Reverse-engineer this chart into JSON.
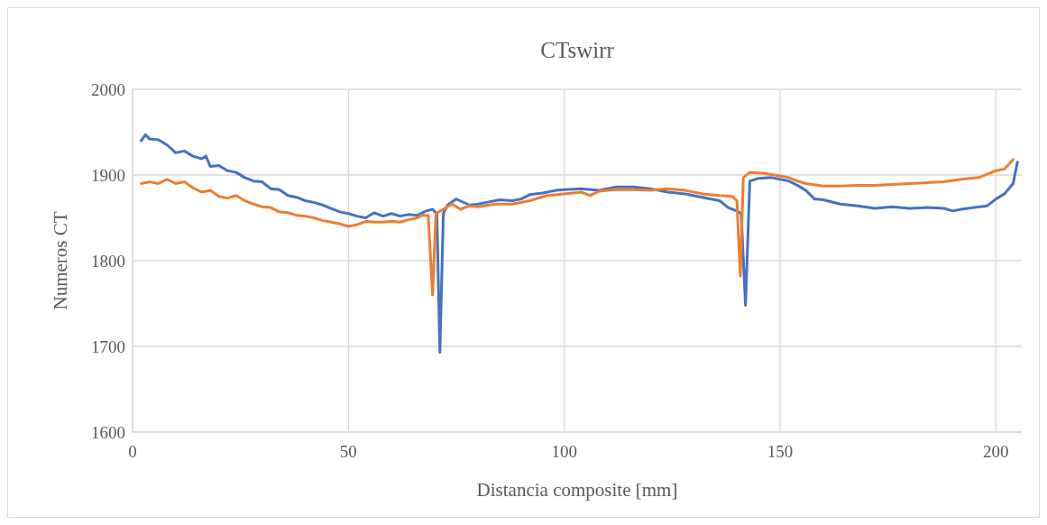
{
  "chart_data": {
    "type": "line",
    "title": "CTswirr",
    "xlabel": "Distancia composite [mm]",
    "ylabel": "Numeros CT",
    "xlim": [
      0,
      206
    ],
    "xticks": [
      0,
      50,
      100,
      150,
      200
    ],
    "ylim": [
      1600,
      2000
    ],
    "yticks": [
      1600,
      1700,
      1800,
      1900,
      2000
    ],
    "grid": true,
    "series": [
      {
        "color": "#4472c4",
        "x": [
          2,
          3,
          4,
          6,
          8,
          10,
          12,
          14,
          16,
          17,
          18,
          20,
          22,
          24,
          26,
          28,
          30,
          32,
          34,
          36,
          38,
          40,
          42,
          44,
          46,
          48,
          50,
          52,
          54,
          56,
          58,
          60,
          62,
          64,
          66,
          68,
          69.5,
          70.5,
          71.2,
          72,
          73,
          75,
          78,
          80,
          82,
          85,
          88,
          90,
          92,
          95,
          98,
          100,
          104,
          108,
          112,
          116,
          120,
          124,
          128,
          132,
          136,
          138,
          140,
          141,
          142,
          143,
          145,
          148,
          150,
          152,
          154,
          156,
          158,
          160,
          164,
          168,
          172,
          176,
          180,
          184,
          188,
          190,
          192,
          195,
          198,
          200,
          202,
          204,
          205
        ],
        "values": [
          1940,
          1947,
          1942,
          1941,
          1935,
          1926,
          1928,
          1922,
          1919,
          1922,
          1910,
          1911,
          1905,
          1903,
          1897,
          1893,
          1892,
          1884,
          1883,
          1876,
          1874,
          1870,
          1868,
          1865,
          1861,
          1857,
          1855,
          1852,
          1850,
          1856,
          1852,
          1855,
          1852,
          1854,
          1853,
          1858,
          1860,
          1855,
          1693,
          1855,
          1865,
          1872,
          1865,
          1866,
          1868,
          1871,
          1870,
          1872,
          1877,
          1879,
          1882,
          1883,
          1884,
          1882,
          1886,
          1886,
          1884,
          1880,
          1878,
          1874,
          1870,
          1862,
          1858,
          1855,
          1748,
          1893,
          1896,
          1897,
          1895,
          1893,
          1888,
          1882,
          1872,
          1871,
          1866,
          1864,
          1861,
          1863,
          1861,
          1862,
          1861,
          1858,
          1860,
          1862,
          1864,
          1872,
          1878,
          1890,
          1915
        ]
      },
      {
        "color": "#ed7d31",
        "x": [
          2,
          4,
          6,
          8,
          10,
          12,
          14,
          16,
          18,
          20,
          22,
          24,
          26,
          28,
          30,
          32,
          34,
          36,
          38,
          40,
          42,
          44,
          46,
          48,
          50,
          52,
          54,
          56,
          58,
          60,
          62,
          64,
          66,
          67,
          68.5,
          69.5,
          70.3,
          72,
          74,
          76,
          78,
          80,
          84,
          88,
          92,
          96,
          100,
          104,
          106,
          108,
          112,
          116,
          120,
          124,
          128,
          132,
          136,
          139,
          140,
          140.8,
          141.5,
          143,
          146,
          150,
          152,
          154,
          156,
          160,
          164,
          168,
          172,
          176,
          180,
          184,
          188,
          192,
          196,
          198,
          200,
          202,
          204
        ],
        "values": [
          1890,
          1892,
          1890,
          1895,
          1890,
          1892,
          1885,
          1880,
          1882,
          1875,
          1873,
          1876,
          1870,
          1866,
          1863,
          1862,
          1857,
          1856,
          1853,
          1852,
          1850,
          1847,
          1845,
          1843,
          1840,
          1842,
          1846,
          1845,
          1845,
          1846,
          1845,
          1848,
          1850,
          1853,
          1853,
          1760,
          1855,
          1860,
          1866,
          1860,
          1864,
          1863,
          1866,
          1866,
          1870,
          1876,
          1878,
          1880,
          1876,
          1881,
          1883,
          1883,
          1882,
          1884,
          1882,
          1878,
          1876,
          1875,
          1870,
          1782,
          1897,
          1903,
          1902,
          1899,
          1897,
          1893,
          1890,
          1887,
          1887,
          1888,
          1888,
          1889,
          1890,
          1891,
          1892,
          1895,
          1897,
          1901,
          1905,
          1907,
          1918
        ]
      }
    ]
  }
}
